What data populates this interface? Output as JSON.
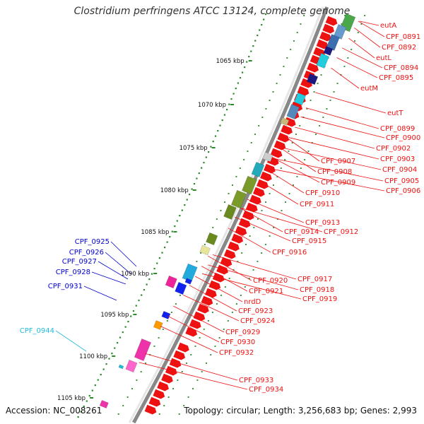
{
  "title": "Clostridium perfringens ATCC 13124, complete genome",
  "footer": {
    "accession": "Accession: NC_008261",
    "summary": "Topology: circular; Length: 3,256,683 bp; Genes: 2,993"
  },
  "colors": {
    "label_red": "#ee1111",
    "label_blue": "#0000cc",
    "label_cyan": "#22bbdd",
    "ruler_tick": "#2a8a2a",
    "backbone": "#888888"
  },
  "ticks": [
    {
      "label": "1065 kbp"
    },
    {
      "label": "1070 kbp"
    },
    {
      "label": "1075 kbp"
    },
    {
      "label": "1080 kbp"
    },
    {
      "label": "1085 kbp"
    },
    {
      "label": "1090 kbp"
    },
    {
      "label": "1095 kbp"
    },
    {
      "label": "1100 kbp"
    },
    {
      "label": "1105 kbp"
    }
  ],
  "right_labels": [
    {
      "text": "eutA",
      "color": "red"
    },
    {
      "text": "CPF_0891",
      "color": "red"
    },
    {
      "text": "CPF_0892",
      "color": "red"
    },
    {
      "text": "eutL",
      "color": "red"
    },
    {
      "text": "CPF_0894",
      "color": "red"
    },
    {
      "text": "CPF_0895",
      "color": "red"
    },
    {
      "text": "eutM",
      "color": "red"
    },
    {
      "text": "eutT",
      "color": "red"
    },
    {
      "text": "CPF_0899",
      "color": "red"
    },
    {
      "text": "CPF_0900",
      "color": "red"
    },
    {
      "text": "CPF_0902",
      "color": "red"
    },
    {
      "text": "CPF_0903",
      "color": "red"
    },
    {
      "text": "CPF_0904",
      "color": "red"
    },
    {
      "text": "CPF_0905",
      "color": "red"
    },
    {
      "text": "CPF_0906",
      "color": "red"
    },
    {
      "text": "CPF_0907",
      "color": "red"
    },
    {
      "text": "CPF_0908",
      "color": "red"
    },
    {
      "text": "CPF_0909",
      "color": "red"
    },
    {
      "text": "CPF_0910",
      "color": "red"
    },
    {
      "text": "CPF_0911",
      "color": "red"
    },
    {
      "text": "CPF_0913",
      "color": "red"
    },
    {
      "text": "CPF_0912",
      "color": "red"
    },
    {
      "text": "CPF_0914",
      "color": "red"
    },
    {
      "text": "CPF_0915",
      "color": "red"
    },
    {
      "text": "CPF_0916",
      "color": "red"
    },
    {
      "text": "CPF_0917",
      "color": "red"
    },
    {
      "text": "CPF_0920",
      "color": "red"
    },
    {
      "text": "CPF_0918",
      "color": "red"
    },
    {
      "text": "CPF_0921",
      "color": "red"
    },
    {
      "text": "CPF_0919",
      "color": "red"
    },
    {
      "text": "nrdD",
      "color": "red"
    },
    {
      "text": "CPF_0923",
      "color": "red"
    },
    {
      "text": "CPF_0924",
      "color": "red"
    },
    {
      "text": "CPF_0929",
      "color": "red"
    },
    {
      "text": "CPF_0930",
      "color": "red"
    },
    {
      "text": "CPF_0932",
      "color": "red"
    },
    {
      "text": "CPF_0933",
      "color": "red"
    },
    {
      "text": "CPF_0934",
      "color": "red"
    }
  ],
  "left_labels": [
    {
      "text": "CPF_0925",
      "color": "blue"
    },
    {
      "text": "CPF_0926",
      "color": "blue"
    },
    {
      "text": "CPF_0927",
      "color": "blue"
    },
    {
      "text": "CPF_0928",
      "color": "blue"
    },
    {
      "text": "CPF_0931",
      "color": "blue"
    },
    {
      "text": "CPF_0944",
      "color": "cyan"
    }
  ]
}
